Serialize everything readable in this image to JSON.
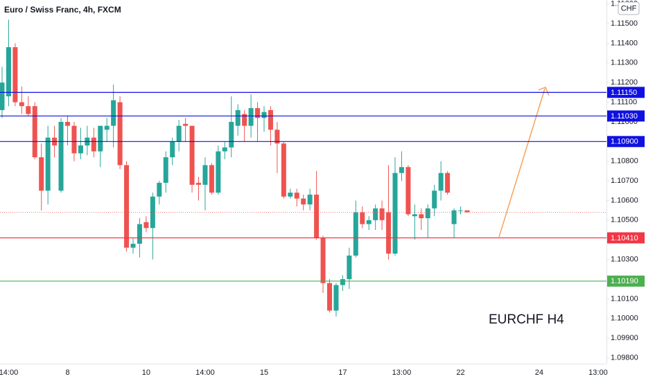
{
  "chart_data": {
    "type": "candlestick",
    "title": "Euro / Swiss Franc, 4h, FXCM",
    "currency": "CHF",
    "annotation": "EURCHF H4",
    "up_color": "#26a69a",
    "down_color": "#ef5350",
    "categories": [
      null,
      "14:00",
      null,
      null,
      null,
      null,
      null,
      null,
      null,
      null,
      "8",
      null,
      null,
      null,
      null,
      null,
      null,
      null,
      null,
      null,
      null,
      null,
      "10",
      null,
      null,
      null,
      null,
      null,
      null,
      null,
      null,
      "14:00",
      null,
      null,
      null,
      null,
      null,
      null,
      null,
      null,
      "15",
      null,
      null,
      null,
      null,
      null,
      null,
      null,
      null,
      null,
      null,
      null,
      "17",
      null,
      null,
      null,
      null,
      null,
      null,
      null,
      null,
      "13:00",
      null,
      null,
      null,
      null,
      null,
      null,
      null,
      null,
      "22",
      null,
      null,
      null,
      null,
      null,
      null,
      null,
      null,
      null,
      null,
      null,
      "24",
      null,
      null,
      null,
      null,
      null,
      null,
      null,
      null,
      "13:00"
    ],
    "open": [
      1.1106,
      1.1113,
      1.1138,
      1.111,
      1.1108,
      1.1108,
      1.1082,
      1.1065,
      1.1092,
      1.1065,
      1.11,
      1.1098,
      1.1084,
      1.1088,
      1.1092,
      1.1085,
      1.1096,
      1.1098,
      1.111,
      1.1078,
      1.1036,
      1.1038,
      1.1049,
      1.1046,
      1.1062,
      1.1069,
      1.1082,
      1.109,
      1.1099,
      1.1098,
      1.1069,
      1.1068,
      1.1078,
      1.1064,
      1.1085,
      1.1087,
      1.1098,
      1.1104,
      1.1098,
      1.1107,
      1.1102,
      1.1106,
      1.1096,
      1.1089,
      1.1062,
      1.1064,
      1.1061,
      1.1058,
      1.1063,
      1.1041,
      1.1018,
      1.1004,
      1.1017,
      1.102,
      1.1032,
      1.1054,
      1.1048,
      1.105,
      1.1056,
      1.1054,
      1.1033,
      1.1074,
      1.1077,
      1.1052,
      1.1053,
      1.1051,
      1.1056,
      1.1065,
      1.1074,
      1.1048,
      1.1055,
      1.1055,
      null,
      null,
      null,
      null,
      null,
      null,
      null,
      null,
      null,
      null,
      null,
      null,
      null,
      null,
      null,
      null,
      null,
      null,
      null,
      null
    ],
    "high": [
      1.1128,
      1.1152,
      1.114,
      1.1118,
      1.1113,
      1.111,
      1.1089,
      1.1098,
      1.1098,
      1.1102,
      1.1103,
      1.11,
      1.1097,
      1.1098,
      1.1097,
      1.1098,
      1.1102,
      1.1119,
      1.1113,
      1.108,
      1.1041,
      1.1051,
      1.1052,
      1.1064,
      1.107,
      1.1085,
      1.1092,
      1.1101,
      1.1102,
      1.1098,
      1.1072,
      1.1082,
      1.1079,
      1.1088,
      1.109,
      1.1113,
      1.1109,
      1.1106,
      1.1114,
      1.111,
      1.1108,
      1.1108,
      1.11,
      1.109,
      1.1066,
      1.1066,
      1.1063,
      1.1066,
      1.1075,
      1.1042,
      1.102,
      1.1018,
      1.1022,
      1.1036,
      1.106,
      1.1057,
      1.1052,
      1.1058,
      1.106,
      1.1078,
      1.1082,
      1.1085,
      1.1078,
      1.1058,
      1.1056,
      1.1058,
      1.1068,
      1.108,
      1.1075,
      1.1056,
      1.1057,
      1.1055,
      null,
      null,
      null,
      null,
      null,
      null,
      null,
      null,
      null,
      null,
      null,
      null,
      null,
      null,
      null,
      null,
      null,
      null,
      null,
      null
    ],
    "low": [
      1.1102,
      1.1108,
      1.1108,
      1.1104,
      1.1103,
      1.1081,
      1.1055,
      1.1058,
      1.1082,
      1.1064,
      1.1088,
      1.108,
      1.1081,
      1.1083,
      1.1082,
      1.1077,
      1.109,
      1.1087,
      1.1076,
      1.1034,
      1.1033,
      1.1031,
      1.1044,
      1.103,
      1.1058,
      1.1064,
      1.1078,
      1.1085,
      1.109,
      1.1064,
      1.106,
      1.1055,
      1.1063,
      1.1063,
      1.1081,
      1.1082,
      1.1093,
      1.109,
      1.1092,
      1.109,
      1.1095,
      1.1088,
      1.1074,
      1.1061,
      1.1061,
      1.1057,
      1.1055,
      1.1055,
      1.104,
      1.1013,
      1.1003,
      1.1001,
      1.1014,
      1.1015,
      1.1031,
      1.1046,
      1.1045,
      1.1045,
      1.1045,
      1.103,
      1.1032,
      1.107,
      1.1052,
      1.104,
      1.1045,
      1.1041,
      1.1052,
      1.106,
      1.1063,
      1.1041,
      1.1053,
      1.1054,
      null,
      null,
      null,
      null,
      null,
      null,
      null,
      null,
      null,
      null,
      null,
      null,
      null,
      null,
      null,
      null,
      null,
      null,
      null,
      null
    ],
    "close": [
      1.112,
      1.1138,
      1.111,
      1.1108,
      1.1104,
      1.1082,
      1.1065,
      1.1092,
      1.1088,
      1.11,
      1.1098,
      1.1084,
      1.1088,
      1.1092,
      1.1085,
      1.1098,
      1.1098,
      1.1111,
      1.1078,
      1.1036,
      1.1038,
      1.1048,
      1.1046,
      1.1062,
      1.1069,
      1.1082,
      1.109,
      1.1098,
      1.1098,
      1.1068,
      1.1068,
      1.1078,
      1.1064,
      1.1085,
      1.1087,
      1.11,
      1.1106,
      1.1098,
      1.1107,
      1.1102,
      1.1105,
      1.1096,
      1.1089,
      1.1062,
      1.1064,
      1.1061,
      1.1058,
      1.1063,
      1.1041,
      1.1018,
      1.1004,
      1.1017,
      1.102,
      1.1032,
      1.1054,
      1.1048,
      1.105,
      1.1056,
      1.105,
      1.1033,
      1.1074,
      1.1077,
      1.1053,
      1.1053,
      1.1051,
      1.1056,
      1.1065,
      1.1074,
      1.1064,
      1.1055,
      1.1055,
      1.1054,
      null,
      null,
      null,
      null,
      null,
      null,
      null,
      null,
      null,
      null,
      null,
      null,
      null,
      null,
      null,
      null,
      null,
      null,
      null,
      null
    ],
    "ylim": [
      1.0977,
      1.1162
    ],
    "yticks": [
      {
        "value": 1.098,
        "label": "1.09800"
      },
      {
        "value": 1.099,
        "label": "1.09900"
      },
      {
        "value": 1.1,
        "label": "1.10000"
      },
      {
        "value": 1.101,
        "label": "1.10100"
      },
      {
        "value": 1.103,
        "label": "1.10300"
      },
      {
        "value": 1.105,
        "label": "1.10500"
      },
      {
        "value": 1.106,
        "label": "1.10600"
      },
      {
        "value": 1.107,
        "label": "1.10700"
      },
      {
        "value": 1.108,
        "label": "1.10800"
      },
      {
        "value": 1.11,
        "label": "1.11000"
      },
      {
        "value": 1.111,
        "label": "1.11100"
      },
      {
        "value": 1.112,
        "label": "1.11200"
      },
      {
        "value": 1.113,
        "label": "1.11300"
      },
      {
        "value": 1.114,
        "label": "1.11400"
      },
      {
        "value": 1.115,
        "label": "1.11500"
      },
      {
        "value": 1.116,
        "label": "1.11600"
      }
    ],
    "levels": [
      {
        "value": 1.1115,
        "label": "1.11150",
        "color": "#1010e0"
      },
      {
        "value": 1.1103,
        "label": "1.11030",
        "color": "#1010e0"
      },
      {
        "value": 1.109,
        "label": "1.10900",
        "color": "#1010e0"
      },
      {
        "value": 1.1041,
        "label": "1.10410",
        "color": "#f23645"
      },
      {
        "value": 1.1019,
        "label": "1.10190",
        "color": "#4caf50"
      }
    ]
  }
}
